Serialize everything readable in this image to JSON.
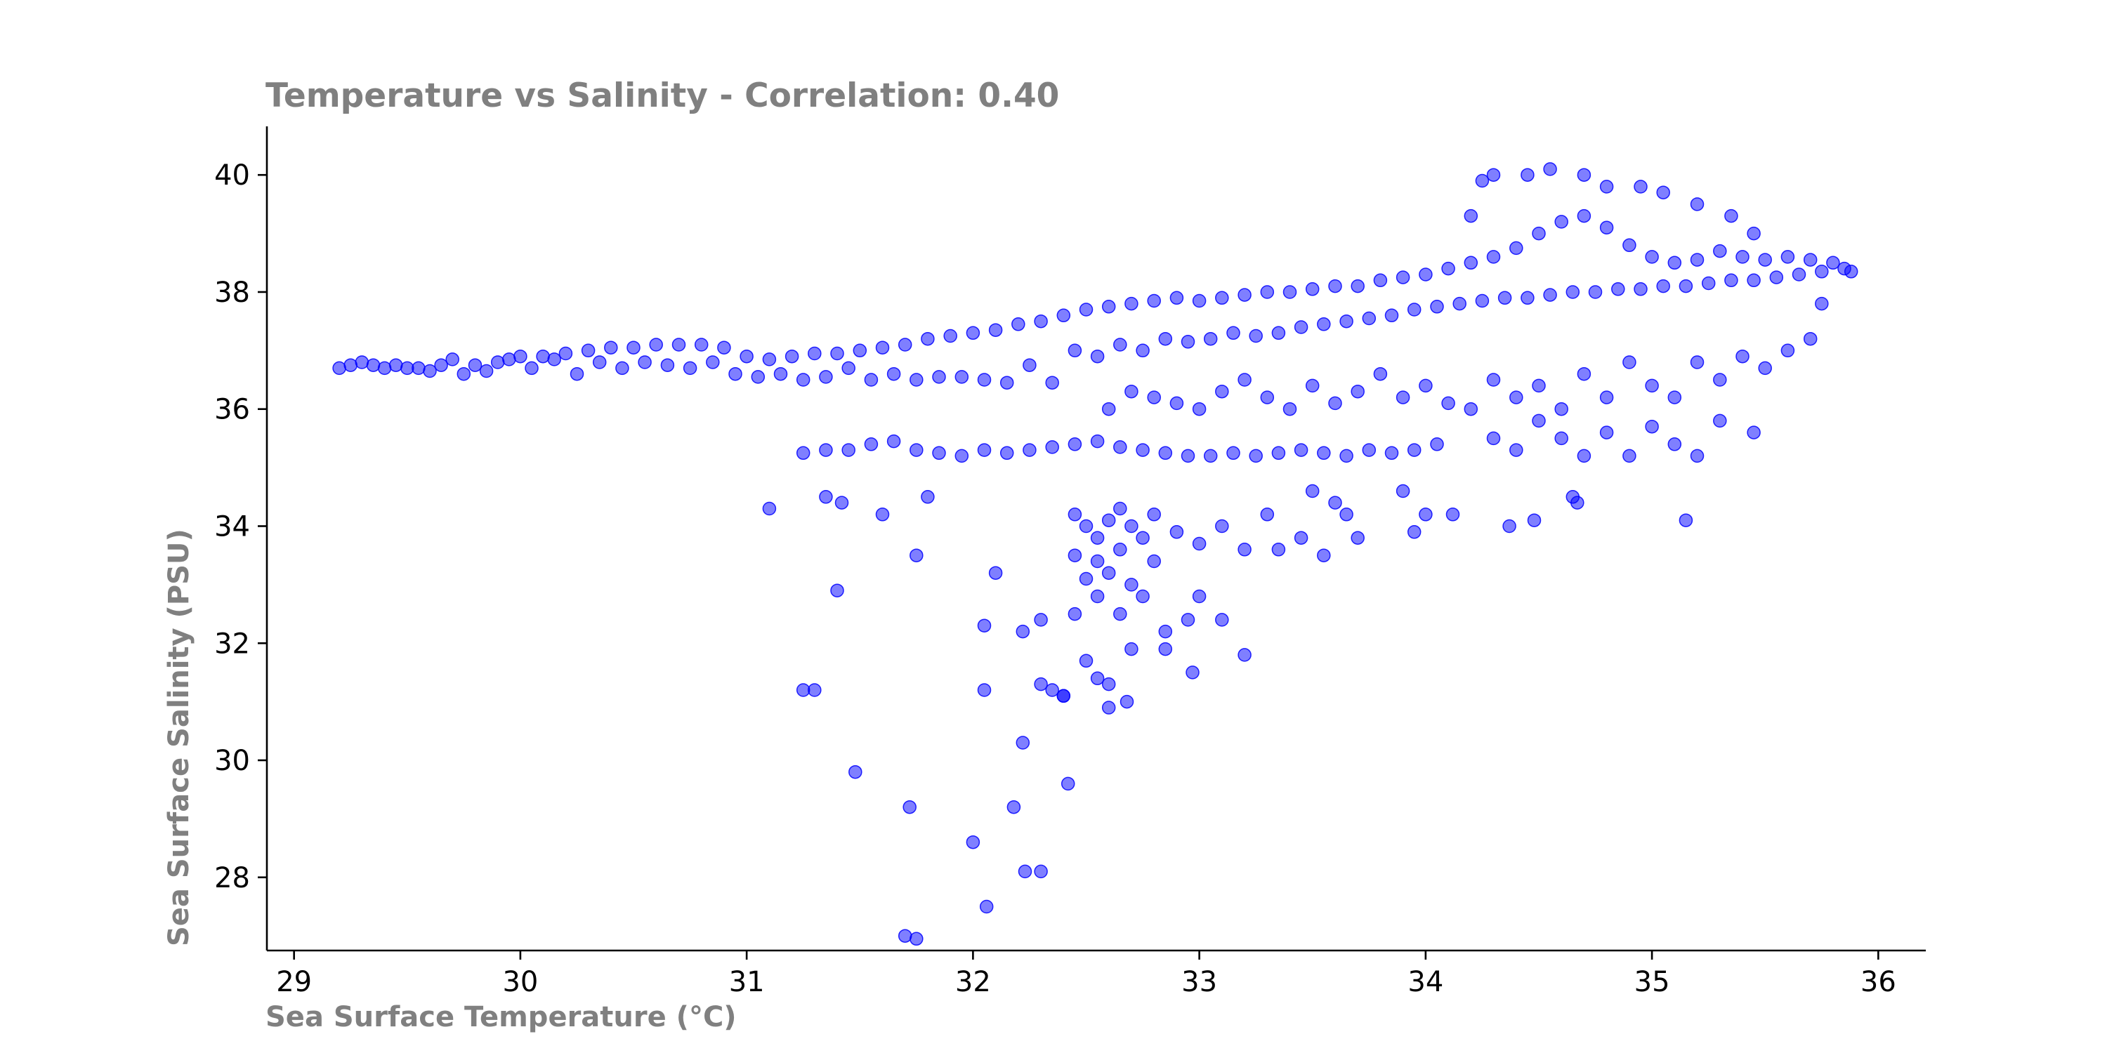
{
  "chart_data": {
    "type": "scatter",
    "title": "Temperature vs Salinity - Correlation: 0.40",
    "xlabel": "Sea Surface Temperature (°C)",
    "ylabel": "Sea Surface Salinity (PSU)",
    "xlim": [
      28.88,
      36.21
    ],
    "ylim": [
      26.75,
      40.83
    ],
    "xticks": [
      29,
      30,
      31,
      32,
      33,
      34,
      35,
      36
    ],
    "yticks": [
      28,
      30,
      32,
      34,
      36,
      38,
      40
    ],
    "grid": false,
    "legend": "none",
    "point_color": "#0000ff",
    "point_opacity": 0.5,
    "series": [
      {
        "points": [
          [
            29.2,
            36.7
          ],
          [
            29.25,
            36.75
          ],
          [
            29.3,
            36.8
          ],
          [
            29.35,
            36.75
          ],
          [
            29.4,
            36.7
          ],
          [
            29.45,
            36.75
          ],
          [
            29.5,
            36.7
          ],
          [
            29.55,
            36.7
          ],
          [
            29.6,
            36.65
          ],
          [
            29.65,
            36.75
          ],
          [
            29.7,
            36.85
          ],
          [
            29.75,
            36.6
          ],
          [
            29.8,
            36.75
          ],
          [
            29.85,
            36.65
          ],
          [
            29.9,
            36.8
          ],
          [
            29.95,
            36.85
          ],
          [
            30.0,
            36.9
          ],
          [
            30.05,
            36.7
          ],
          [
            30.1,
            36.9
          ],
          [
            30.15,
            36.85
          ],
          [
            30.2,
            36.95
          ],
          [
            30.25,
            36.6
          ],
          [
            30.3,
            37.0
          ],
          [
            30.35,
            36.8
          ],
          [
            30.4,
            37.05
          ],
          [
            30.45,
            36.7
          ],
          [
            30.5,
            37.05
          ],
          [
            30.55,
            36.8
          ],
          [
            30.6,
            37.1
          ],
          [
            30.65,
            36.75
          ],
          [
            30.7,
            37.1
          ],
          [
            30.75,
            36.7
          ],
          [
            30.8,
            37.1
          ],
          [
            30.85,
            36.8
          ],
          [
            30.9,
            37.05
          ],
          [
            30.95,
            36.6
          ],
          [
            31.0,
            36.9
          ],
          [
            31.05,
            36.55
          ],
          [
            31.1,
            36.85
          ],
          [
            31.15,
            36.6
          ],
          [
            31.2,
            36.9
          ],
          [
            31.25,
            36.5
          ],
          [
            31.3,
            36.95
          ],
          [
            31.35,
            36.55
          ],
          [
            31.4,
            36.95
          ],
          [
            31.45,
            36.7
          ],
          [
            31.5,
            37.0
          ],
          [
            31.55,
            36.5
          ],
          [
            31.6,
            37.05
          ],
          [
            31.65,
            36.6
          ],
          [
            31.7,
            37.1
          ],
          [
            31.75,
            36.5
          ],
          [
            31.8,
            37.2
          ],
          [
            31.85,
            36.55
          ],
          [
            31.9,
            37.25
          ],
          [
            31.95,
            36.55
          ],
          [
            32.0,
            37.3
          ],
          [
            32.05,
            36.5
          ],
          [
            32.1,
            37.35
          ],
          [
            32.15,
            36.45
          ],
          [
            32.2,
            37.45
          ],
          [
            32.25,
            36.75
          ],
          [
            32.3,
            37.5
          ],
          [
            32.35,
            36.45
          ],
          [
            32.4,
            37.6
          ],
          [
            32.45,
            37.0
          ],
          [
            32.5,
            37.7
          ],
          [
            32.55,
            36.9
          ],
          [
            32.6,
            37.75
          ],
          [
            32.65,
            37.1
          ],
          [
            32.7,
            37.8
          ],
          [
            32.75,
            37.0
          ],
          [
            32.8,
            37.85
          ],
          [
            32.85,
            37.2
          ],
          [
            32.9,
            37.9
          ],
          [
            32.95,
            37.15
          ],
          [
            33.0,
            37.85
          ],
          [
            33.05,
            37.2
          ],
          [
            33.1,
            37.9
          ],
          [
            33.15,
            37.3
          ],
          [
            33.2,
            37.95
          ],
          [
            33.25,
            37.25
          ],
          [
            33.3,
            38.0
          ],
          [
            33.35,
            37.3
          ],
          [
            33.4,
            38.0
          ],
          [
            33.45,
            37.4
          ],
          [
            33.5,
            38.05
          ],
          [
            33.55,
            37.45
          ],
          [
            33.6,
            38.1
          ],
          [
            33.65,
            37.5
          ],
          [
            33.7,
            38.1
          ],
          [
            33.75,
            37.55
          ],
          [
            33.8,
            38.2
          ],
          [
            33.85,
            37.6
          ],
          [
            33.9,
            38.25
          ],
          [
            33.95,
            37.7
          ],
          [
            34.0,
            38.3
          ],
          [
            34.05,
            37.75
          ],
          [
            34.1,
            38.4
          ],
          [
            34.15,
            37.8
          ],
          [
            34.2,
            38.5
          ],
          [
            34.25,
            37.85
          ],
          [
            34.3,
            38.6
          ],
          [
            34.35,
            37.9
          ],
          [
            34.4,
            38.75
          ],
          [
            34.45,
            37.9
          ],
          [
            34.5,
            39.0
          ],
          [
            34.55,
            37.95
          ],
          [
            34.6,
            39.2
          ],
          [
            34.65,
            38.0
          ],
          [
            34.7,
            39.3
          ],
          [
            34.75,
            38.0
          ],
          [
            34.8,
            39.1
          ],
          [
            34.85,
            38.05
          ],
          [
            34.9,
            38.8
          ],
          [
            34.95,
            38.05
          ],
          [
            35.0,
            38.6
          ],
          [
            35.05,
            38.1
          ],
          [
            35.1,
            38.5
          ],
          [
            35.15,
            38.1
          ],
          [
            35.2,
            38.55
          ],
          [
            35.25,
            38.15
          ],
          [
            35.3,
            38.7
          ],
          [
            35.35,
            38.2
          ],
          [
            35.4,
            38.6
          ],
          [
            35.45,
            38.2
          ],
          [
            35.5,
            38.55
          ],
          [
            35.55,
            38.25
          ],
          [
            35.6,
            38.6
          ],
          [
            35.65,
            38.3
          ],
          [
            35.7,
            38.55
          ],
          [
            35.75,
            38.35
          ],
          [
            35.8,
            38.5
          ],
          [
            35.85,
            38.4
          ],
          [
            35.88,
            38.35
          ],
          [
            31.25,
            35.25
          ],
          [
            31.35,
            35.3
          ],
          [
            31.45,
            35.3
          ],
          [
            31.55,
            35.4
          ],
          [
            31.65,
            35.45
          ],
          [
            31.75,
            35.3
          ],
          [
            31.85,
            35.25
          ],
          [
            31.95,
            35.2
          ],
          [
            32.05,
            35.3
          ],
          [
            32.15,
            35.25
          ],
          [
            32.25,
            35.3
          ],
          [
            32.35,
            35.35
          ],
          [
            32.45,
            35.4
          ],
          [
            32.55,
            35.45
          ],
          [
            32.65,
            35.35
          ],
          [
            32.75,
            35.3
          ],
          [
            32.85,
            35.25
          ],
          [
            32.95,
            35.2
          ],
          [
            33.05,
            35.2
          ],
          [
            33.15,
            35.25
          ],
          [
            33.25,
            35.2
          ],
          [
            33.35,
            35.25
          ],
          [
            33.45,
            35.3
          ],
          [
            33.55,
            35.25
          ],
          [
            33.65,
            35.2
          ],
          [
            33.75,
            35.3
          ],
          [
            33.85,
            35.25
          ],
          [
            33.95,
            35.3
          ],
          [
            34.05,
            35.4
          ],
          [
            32.6,
            36.0
          ],
          [
            32.7,
            36.3
          ],
          [
            32.8,
            36.2
          ],
          [
            32.9,
            36.1
          ],
          [
            33.0,
            36.0
          ],
          [
            33.1,
            36.3
          ],
          [
            33.2,
            36.5
          ],
          [
            33.3,
            36.2
          ],
          [
            33.4,
            36.0
          ],
          [
            33.5,
            36.4
          ],
          [
            33.6,
            36.1
          ],
          [
            33.7,
            36.3
          ],
          [
            33.8,
            36.6
          ],
          [
            33.9,
            36.2
          ],
          [
            34.0,
            36.4
          ],
          [
            34.1,
            36.1
          ],
          [
            34.2,
            36.0
          ],
          [
            34.3,
            36.5
          ],
          [
            34.4,
            36.2
          ],
          [
            34.5,
            36.4
          ],
          [
            34.6,
            36.0
          ],
          [
            34.7,
            36.6
          ],
          [
            34.8,
            36.2
          ],
          [
            34.9,
            36.8
          ],
          [
            35.0,
            36.4
          ],
          [
            35.1,
            36.2
          ],
          [
            35.2,
            36.8
          ],
          [
            35.3,
            36.5
          ],
          [
            35.4,
            36.9
          ],
          [
            35.5,
            36.7
          ],
          [
            35.6,
            37.0
          ],
          [
            35.7,
            37.2
          ],
          [
            35.75,
            37.8
          ],
          [
            34.2,
            39.3
          ],
          [
            34.25,
            39.9
          ],
          [
            34.3,
            40.0
          ],
          [
            34.45,
            40.0
          ],
          [
            34.55,
            40.1
          ],
          [
            34.7,
            40.0
          ],
          [
            34.8,
            39.8
          ],
          [
            34.95,
            39.8
          ],
          [
            35.05,
            39.7
          ],
          [
            35.2,
            39.5
          ],
          [
            35.35,
            39.3
          ],
          [
            35.45,
            39.0
          ],
          [
            34.3,
            35.5
          ],
          [
            34.4,
            35.3
          ],
          [
            34.5,
            35.8
          ],
          [
            34.6,
            35.5
          ],
          [
            34.7,
            35.2
          ],
          [
            34.8,
            35.6
          ],
          [
            34.9,
            35.2
          ],
          [
            35.0,
            35.7
          ],
          [
            35.1,
            35.4
          ],
          [
            35.2,
            35.2
          ],
          [
            35.3,
            35.8
          ],
          [
            35.45,
            35.6
          ],
          [
            34.65,
            34.5
          ],
          [
            34.67,
            34.4
          ],
          [
            34.37,
            34.0
          ],
          [
            34.48,
            34.1
          ],
          [
            34.12,
            34.2
          ],
          [
            35.15,
            34.1
          ],
          [
            32.45,
            34.2
          ],
          [
            32.5,
            34.0
          ],
          [
            32.55,
            33.8
          ],
          [
            32.6,
            34.1
          ],
          [
            32.65,
            34.3
          ],
          [
            32.7,
            34.0
          ],
          [
            32.75,
            33.8
          ],
          [
            32.8,
            34.2
          ],
          [
            32.45,
            33.5
          ],
          [
            32.5,
            33.1
          ],
          [
            32.55,
            33.4
          ],
          [
            32.6,
            33.2
          ],
          [
            32.65,
            33.6
          ],
          [
            32.7,
            33.0
          ],
          [
            32.8,
            33.4
          ],
          [
            32.9,
            33.9
          ],
          [
            33.0,
            33.7
          ],
          [
            33.1,
            34.0
          ],
          [
            33.2,
            33.6
          ],
          [
            33.3,
            34.2
          ],
          [
            32.45,
            32.5
          ],
          [
            32.55,
            32.8
          ],
          [
            32.65,
            32.5
          ],
          [
            32.75,
            32.8
          ],
          [
            32.85,
            32.2
          ],
          [
            32.95,
            32.4
          ],
          [
            33.0,
            32.8
          ],
          [
            33.1,
            32.4
          ],
          [
            33.2,
            31.8
          ],
          [
            32.3,
            32.4
          ],
          [
            32.5,
            31.7
          ],
          [
            32.55,
            31.4
          ],
          [
            32.6,
            31.3
          ],
          [
            32.7,
            31.9
          ],
          [
            32.85,
            31.9
          ],
          [
            32.97,
            31.5
          ],
          [
            32.35,
            31.2
          ],
          [
            32.4,
            31.1
          ],
          [
            32.6,
            30.9
          ],
          [
            32.68,
            31.0
          ],
          [
            33.5,
            34.6
          ],
          [
            33.6,
            34.4
          ],
          [
            33.65,
            34.2
          ],
          [
            33.7,
            33.8
          ],
          [
            33.55,
            33.5
          ],
          [
            33.45,
            33.8
          ],
          [
            33.35,
            33.6
          ],
          [
            33.9,
            34.6
          ],
          [
            34.0,
            34.2
          ],
          [
            33.95,
            33.9
          ],
          [
            31.1,
            34.3
          ],
          [
            31.35,
            34.5
          ],
          [
            31.42,
            34.4
          ],
          [
            31.6,
            34.2
          ],
          [
            31.8,
            34.5
          ],
          [
            31.4,
            32.9
          ],
          [
            31.75,
            33.5
          ],
          [
            32.1,
            33.2
          ],
          [
            31.25,
            31.2
          ],
          [
            31.3,
            31.2
          ],
          [
            32.05,
            32.3
          ],
          [
            32.22,
            32.2
          ],
          [
            32.05,
            31.2
          ],
          [
            32.3,
            31.3
          ],
          [
            32.4,
            31.1
          ],
          [
            31.48,
            29.8
          ],
          [
            31.72,
            29.2
          ],
          [
            32.22,
            30.3
          ],
          [
            32.42,
            29.6
          ],
          [
            32.18,
            29.2
          ],
          [
            32.0,
            28.6
          ],
          [
            32.23,
            28.1
          ],
          [
            32.3,
            28.1
          ],
          [
            32.06,
            27.5
          ],
          [
            31.7,
            27.0
          ],
          [
            31.75,
            26.95
          ]
        ]
      }
    ]
  }
}
